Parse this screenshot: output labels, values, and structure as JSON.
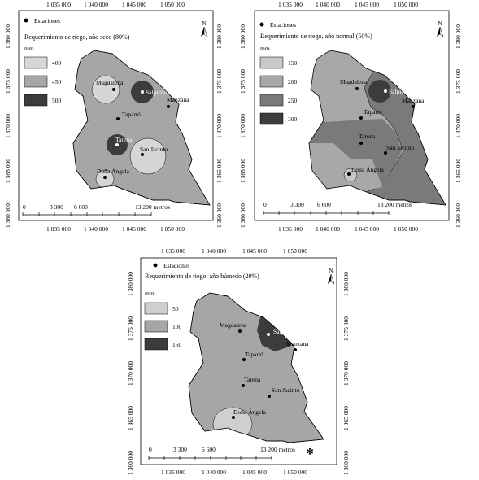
{
  "legend_station_label": "Estaciones",
  "units": "mm",
  "north": "N",
  "maps": [
    {
      "title": "Requerimiento de riego, año seco (80%)",
      "classes": [
        {
          "label": "400",
          "color": "#d6d6d6"
        },
        {
          "label": "450",
          "color": "#a6a6a6"
        },
        {
          "label": "500",
          "color": "#3c3c3c"
        }
      ]
    },
    {
      "title": "Requerimiento de riego, año normal (50%)",
      "classes": [
        {
          "label": "150",
          "color": "#c8c8c8"
        },
        {
          "label": "200",
          "color": "#a8a8a8"
        },
        {
          "label": "250",
          "color": "#7a7a7a"
        },
        {
          "label": "300",
          "color": "#3c3c3c"
        }
      ]
    },
    {
      "title": "Requerimiento de riego, año húmedo (20%)",
      "classes": [
        {
          "label": "50",
          "color": "#cfcfcf"
        },
        {
          "label": "100",
          "color": "#a6a6a6"
        },
        {
          "label": "150",
          "color": "#3c3c3c"
        }
      ]
    }
  ],
  "stations": {
    "magdalena": "Magdalena",
    "salpicon": "Salpicón",
    "manzana": "Manzana",
    "taparto": "Tapartó",
    "tarena": "Tarena",
    "san_jacinto": "San Jacinto",
    "dona_angela": "Doña Ángela"
  },
  "scale": {
    "s0": "0",
    "s1": "3 300",
    "s2": "6 600",
    "s3": "13 200 metros"
  },
  "x_ticks": [
    "1 035 000",
    "1 040 000",
    "1 045 000",
    "1 050 000"
  ],
  "y_ticks": [
    "1 380 000",
    "1 375 000",
    "1 370 000",
    "1 365 000",
    "1 360 000"
  ],
  "mark": "*"
}
